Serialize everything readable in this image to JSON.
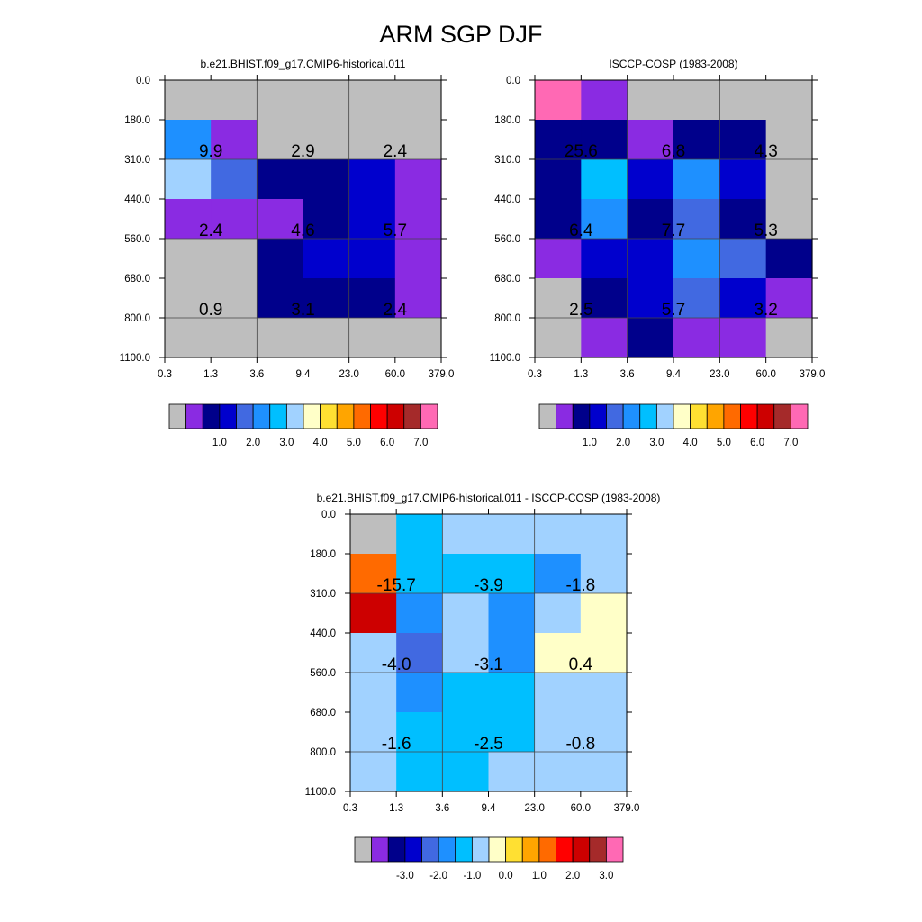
{
  "title": "ARM SGP DJF",
  "palette": {
    "gray": "#bebebe",
    "violet": "#8a2be2",
    "navy": "#00008b",
    "medblue": "#0000cd",
    "royal": "#4169e1",
    "dodger": "#1e90ff",
    "deepsky": "#00bfff",
    "lightblue": "#a1d2ff",
    "cream": "#ffffc8",
    "gold": "#ffe032",
    "orange": "#ffa500",
    "darkorange": "#ff6a00",
    "red": "#ff0000",
    "crimson": "#cd0000",
    "brown": "#a52a2a",
    "pink": "#ff69b4"
  },
  "colorbar_colors": [
    "gray",
    "violet",
    "navy",
    "medblue",
    "royal",
    "dodger",
    "deepsky",
    "lightblue",
    "cream",
    "gold",
    "orange",
    "darkorange",
    "red",
    "crimson",
    "brown",
    "pink"
  ],
  "chart_data": [
    {
      "type": "heatmap",
      "subtitle": "b.e21.BHIST.f09_g17.CMIP6-historical.011",
      "xticks": [
        "0.3",
        "1.3",
        "3.6",
        "9.4",
        "23.0",
        "60.0",
        "379.0"
      ],
      "yticks": [
        "0.0",
        "180.0",
        "310.0",
        "440.0",
        "560.0",
        "680.0",
        "800.0",
        "1100.0"
      ],
      "cell_colors": [
        [
          "gray",
          "gray",
          "gray",
          "gray",
          "gray",
          "gray"
        ],
        [
          "dodger",
          "violet",
          "gray",
          "gray",
          "gray",
          "gray"
        ],
        [
          "lightblue",
          "royal",
          "navy",
          "navy",
          "medblue",
          "violet"
        ],
        [
          "violet",
          "violet",
          "violet",
          "navy",
          "medblue",
          "violet"
        ],
        [
          "gray",
          "gray",
          "navy",
          "medblue",
          "medblue",
          "violet"
        ],
        [
          "gray",
          "gray",
          "navy",
          "navy",
          "navy",
          "violet"
        ],
        [
          "gray",
          "gray",
          "gray",
          "gray",
          "gray",
          "gray"
        ]
      ],
      "labels": [
        {
          "col": 0,
          "row": 1,
          "text": "9.9"
        },
        {
          "col": 1,
          "row": 1,
          "text": "2.9"
        },
        {
          "col": 2,
          "row": 1,
          "text": "2.4"
        },
        {
          "col": 0,
          "row": 3,
          "text": "2.4"
        },
        {
          "col": 1,
          "row": 3,
          "text": "4.6"
        },
        {
          "col": 2,
          "row": 3,
          "text": "5.7"
        },
        {
          "col": 0,
          "row": 5,
          "text": "0.9"
        },
        {
          "col": 1,
          "row": 5,
          "text": "3.1"
        },
        {
          "col": 2,
          "row": 5,
          "text": "2.4"
        }
      ],
      "colorbar_labels": [
        "1.0",
        "2.0",
        "3.0",
        "4.0",
        "5.0",
        "6.0",
        "7.0"
      ]
    },
    {
      "type": "heatmap",
      "subtitle": "ISCCP-COSP (1983-2008)",
      "xticks": [
        "0.3",
        "1.3",
        "3.6",
        "9.4",
        "23.0",
        "60.0",
        "379.0"
      ],
      "yticks": [
        "0.0",
        "180.0",
        "310.0",
        "440.0",
        "560.0",
        "680.0",
        "800.0",
        "1100.0"
      ],
      "cell_colors": [
        [
          "pink",
          "violet",
          "gray",
          "gray",
          "gray",
          "gray"
        ],
        [
          "navy",
          "navy",
          "violet",
          "navy",
          "navy",
          "gray"
        ],
        [
          "navy",
          "deepsky",
          "medblue",
          "dodger",
          "medblue",
          "gray"
        ],
        [
          "navy",
          "dodger",
          "navy",
          "royal",
          "navy",
          "gray"
        ],
        [
          "violet",
          "medblue",
          "medblue",
          "dodger",
          "royal",
          "navy"
        ],
        [
          "gray",
          "navy",
          "medblue",
          "royal",
          "medblue",
          "violet"
        ],
        [
          "gray",
          "violet",
          "navy",
          "violet",
          "violet",
          "gray"
        ]
      ],
      "labels": [
        {
          "col": 0,
          "row": 1,
          "text": "25.6"
        },
        {
          "col": 1,
          "row": 1,
          "text": "6.8"
        },
        {
          "col": 2,
          "row": 1,
          "text": "4.3"
        },
        {
          "col": 0,
          "row": 3,
          "text": "6.4"
        },
        {
          "col": 1,
          "row": 3,
          "text": "7.7"
        },
        {
          "col": 2,
          "row": 3,
          "text": "5.3"
        },
        {
          "col": 0,
          "row": 5,
          "text": "2.5"
        },
        {
          "col": 1,
          "row": 5,
          "text": "5.7"
        },
        {
          "col": 2,
          "row": 5,
          "text": "3.2"
        }
      ],
      "colorbar_labels": [
        "1.0",
        "2.0",
        "3.0",
        "4.0",
        "5.0",
        "6.0",
        "7.0"
      ]
    },
    {
      "type": "heatmap",
      "subtitle": "b.e21.BHIST.f09_g17.CMIP6-historical.011 - ISCCP-COSP (1983-2008)",
      "xticks": [
        "0.3",
        "1.3",
        "3.6",
        "9.4",
        "23.0",
        "60.0",
        "379.0"
      ],
      "yticks": [
        "0.0",
        "180.0",
        "310.0",
        "440.0",
        "560.0",
        "680.0",
        "800.0",
        "1100.0"
      ],
      "cell_colors": [
        [
          "gray",
          "deepsky",
          "lightblue",
          "lightblue",
          "lightblue",
          "lightblue"
        ],
        [
          "darkorange",
          "deepsky",
          "deepsky",
          "deepsky",
          "dodger",
          "lightblue"
        ],
        [
          "crimson",
          "dodger",
          "lightblue",
          "dodger",
          "lightblue",
          "cream"
        ],
        [
          "lightblue",
          "royal",
          "lightblue",
          "dodger",
          "cream",
          "cream"
        ],
        [
          "lightblue",
          "dodger",
          "deepsky",
          "deepsky",
          "lightblue",
          "lightblue"
        ],
        [
          "lightblue",
          "deepsky",
          "deepsky",
          "deepsky",
          "lightblue",
          "lightblue"
        ],
        [
          "lightblue",
          "deepsky",
          "deepsky",
          "lightblue",
          "lightblue",
          "lightblue"
        ]
      ],
      "labels": [
        {
          "col": 0,
          "row": 1,
          "text": "-15.7"
        },
        {
          "col": 1,
          "row": 1,
          "text": "-3.9"
        },
        {
          "col": 2,
          "row": 1,
          "text": "-1.8"
        },
        {
          "col": 0,
          "row": 3,
          "text": "-4.0"
        },
        {
          "col": 1,
          "row": 3,
          "text": "-3.1"
        },
        {
          "col": 2,
          "row": 3,
          "text": "0.4"
        },
        {
          "col": 0,
          "row": 5,
          "text": "-1.6"
        },
        {
          "col": 1,
          "row": 5,
          "text": "-2.5"
        },
        {
          "col": 2,
          "row": 5,
          "text": "-0.8"
        }
      ],
      "colorbar_labels": [
        "-3.0",
        "-2.0",
        "-1.0",
        "0.0",
        "1.0",
        "2.0",
        "3.0"
      ]
    }
  ]
}
